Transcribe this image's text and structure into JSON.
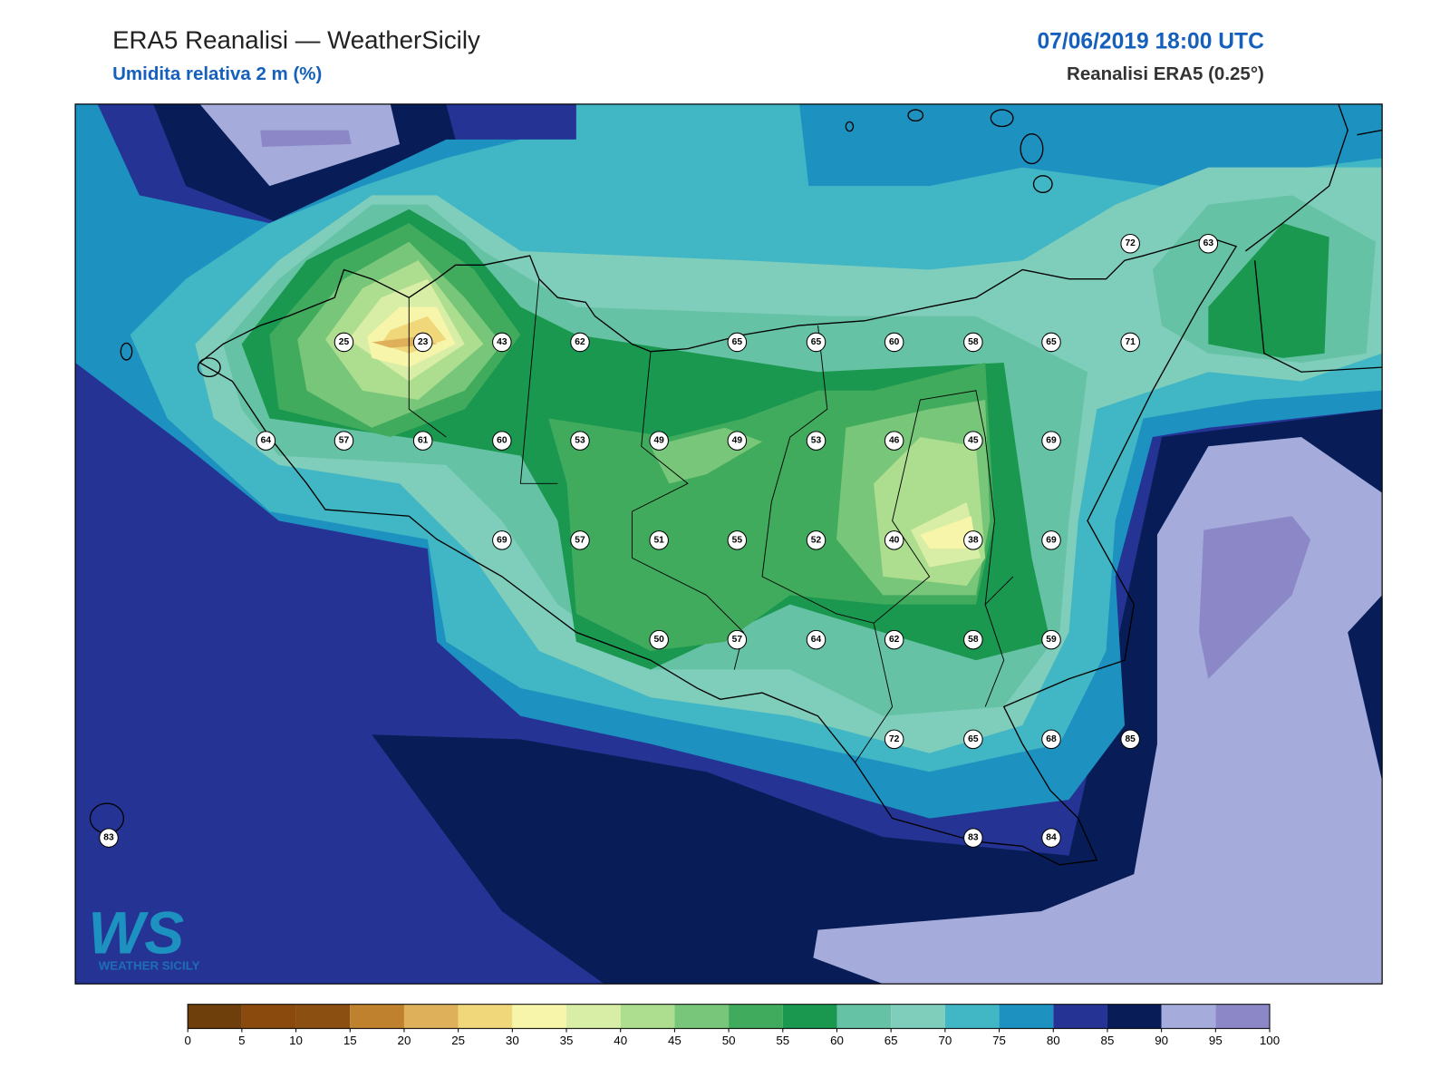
{
  "header": {
    "title": "ERA5 Reanalisi — WeatherSicily",
    "subtitle": "Umidita relativa 2 m (%)",
    "datetime": "07/06/2019 18:00 UTC",
    "source": "Reanalisi ERA5 (0.25°)"
  },
  "stations": [
    72,
    63,
    25,
    23,
    43,
    62,
    65,
    65,
    60,
    58,
    65,
    71,
    64,
    57,
    61,
    60,
    53,
    49,
    49,
    53,
    46,
    45,
    69,
    69,
    57,
    51,
    55,
    52,
    40,
    38,
    69,
    50,
    57,
    64,
    62,
    58,
    59,
    72,
    65,
    68,
    85,
    83,
    83,
    84
  ],
  "colorbar": {
    "ticks": [
      0,
      5,
      10,
      15,
      20,
      25,
      30,
      35,
      40,
      45,
      50,
      55,
      60,
      65,
      70,
      75,
      80,
      85,
      90,
      95,
      100
    ],
    "colors": [
      "#6e3f0a",
      "#8a4a0d",
      "#8c4f12",
      "#bf812d",
      "#dfb05a",
      "#f0d77a",
      "#f6f5aa",
      "#d8eda5",
      "#addd8e",
      "#78c679",
      "#41ab5d",
      "#1a9850",
      "#66c2a4",
      "#7fcdbb",
      "#41b6c4",
      "#1d91c0",
      "#253494",
      "#081d58",
      "#a5acdb",
      "#8c88c8"
    ]
  },
  "logo": {
    "mark": "WS",
    "text": "WEATHER SICILY"
  }
}
